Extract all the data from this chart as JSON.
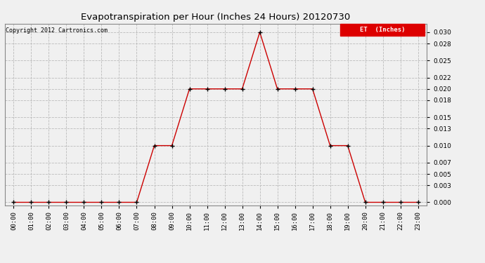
{
  "title": "Evapotranspiration per Hour (Inches 24 Hours) 20120730",
  "copyright": "Copyright 2012 Cartronics.com",
  "legend_label": "ET  (Inches)",
  "legend_bg": "#dd0000",
  "legend_text_color": "#ffffff",
  "line_color": "#cc0000",
  "marker_color": "#000000",
  "background_color": "#f0f0f0",
  "grid_color": "#bbbbbb",
  "hours": [
    "00:00",
    "01:00",
    "02:00",
    "03:00",
    "04:00",
    "05:00",
    "06:00",
    "07:00",
    "08:00",
    "09:00",
    "10:00",
    "11:00",
    "12:00",
    "13:00",
    "14:00",
    "15:00",
    "16:00",
    "17:00",
    "18:00",
    "19:00",
    "20:00",
    "21:00",
    "22:00",
    "23:00"
  ],
  "values": [
    0.0,
    0.0,
    0.0,
    0.0,
    0.0,
    0.0,
    0.0,
    0.0,
    0.01,
    0.01,
    0.02,
    0.02,
    0.02,
    0.02,
    0.03,
    0.02,
    0.02,
    0.02,
    0.01,
    0.01,
    0.0,
    0.0,
    0.0,
    0.0
  ],
  "yticks": [
    0.0,
    0.003,
    0.005,
    0.007,
    0.01,
    0.013,
    0.015,
    0.018,
    0.02,
    0.022,
    0.025,
    0.028,
    0.03
  ],
  "ylim": [
    -0.0005,
    0.0315
  ],
  "figsize": [
    6.9,
    3.75
  ],
  "dpi": 100
}
